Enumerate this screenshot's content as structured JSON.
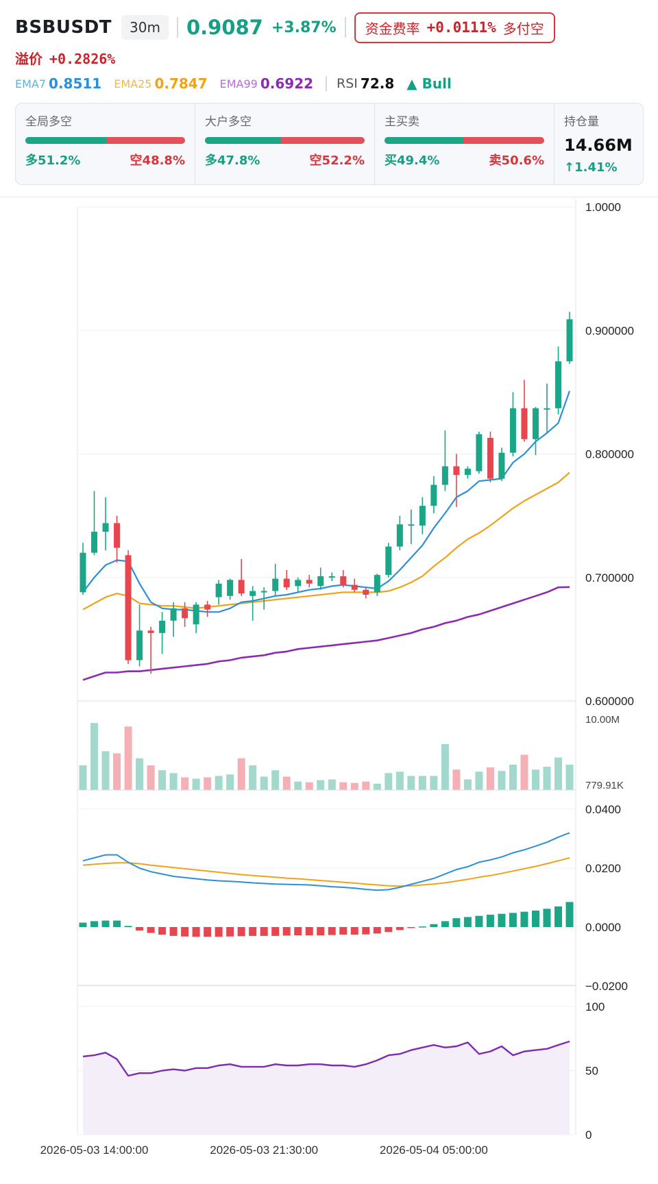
{
  "header": {
    "symbol": "BSBUSDT",
    "timeframe": "30m",
    "price": "0.9087",
    "change": "+3.87%",
    "funding_label": "资金费率",
    "funding_value": "+0.0111%",
    "funding_side": "多付空"
  },
  "premium": {
    "label": "溢价",
    "value": "+0.2826%"
  },
  "indicators": {
    "ema7_label": "EMA7",
    "ema7_value": "0.8511",
    "ema25_label": "EMA25",
    "ema25_value": "0.7847",
    "ema99_label": "EMA99",
    "ema99_value": "0.6922",
    "rsi_label": "RSI",
    "rsi_value": "72.8",
    "trend": "▲ Bull"
  },
  "cards": [
    {
      "title": "全局多空",
      "long_label": "多51.2%",
      "short_label": "空48.8%",
      "long_ratio": 0.512
    },
    {
      "title": "大户多空",
      "long_label": "多47.8%",
      "short_label": "空52.2%",
      "long_ratio": 0.478
    },
    {
      "title": "主买卖",
      "long_label": "买49.4%",
      "short_label": "卖50.6%",
      "long_ratio": 0.494
    }
  ],
  "open_interest": {
    "title": "持仓量",
    "value": "14.66M",
    "change": "↑1.41%"
  },
  "colors": {
    "up": "#1ba687",
    "down": "#e8464f",
    "ema7": "#2b8fd9",
    "ema25": "#f0a21a",
    "ema99": "#8a2bb0",
    "rsi": "#7d2bb0"
  },
  "chart_data": {
    "type": "candlestick",
    "price_axis": {
      "ticks": [
        "1.0000",
        "0.900000",
        "0.800000",
        "0.700000",
        "0.600000"
      ],
      "range": [
        0.6,
        1.0
      ]
    },
    "volume_axis": {
      "ticks": [
        "10.00M",
        "779.91K"
      ],
      "range": [
        0,
        10000000
      ]
    },
    "macd_axis": {
      "ticks": [
        "0.0400",
        "0.0200",
        "0.0000",
        "−0.0200"
      ],
      "range": [
        -0.02,
        0.04
      ]
    },
    "rsi_axis": {
      "ticks": [
        "100",
        "50",
        "0"
      ],
      "range": [
        0,
        100
      ]
    },
    "x_ticks": [
      {
        "label": "2026-05-03 14:00:00",
        "index": 1
      },
      {
        "label": "2026-05-03 21:30:00",
        "index": 16
      },
      {
        "label": "2026-05-04 05:00:00",
        "index": 31
      }
    ],
    "candles": [
      [
        0.688,
        0.728,
        0.686,
        0.72
      ],
      [
        0.72,
        0.77,
        0.718,
        0.737
      ],
      [
        0.737,
        0.765,
        0.722,
        0.744
      ],
      [
        0.744,
        0.75,
        0.712,
        0.724
      ],
      [
        0.718,
        0.722,
        0.63,
        0.633
      ],
      [
        0.633,
        0.678,
        0.628,
        0.657
      ],
      [
        0.657,
        0.66,
        0.622,
        0.655
      ],
      [
        0.655,
        0.672,
        0.638,
        0.665
      ],
      [
        0.665,
        0.68,
        0.652,
        0.675
      ],
      [
        0.675,
        0.68,
        0.66,
        0.667
      ],
      [
        0.662,
        0.68,
        0.655,
        0.678
      ],
      [
        0.678,
        0.681,
        0.668,
        0.674
      ],
      [
        0.684,
        0.698,
        0.678,
        0.695
      ],
      [
        0.685,
        0.699,
        0.682,
        0.698
      ],
      [
        0.698,
        0.715,
        0.685,
        0.687
      ],
      [
        0.685,
        0.693,
        0.665,
        0.689
      ],
      [
        0.689,
        0.692,
        0.674,
        0.689
      ],
      [
        0.689,
        0.711,
        0.685,
        0.699
      ],
      [
        0.699,
        0.706,
        0.69,
        0.692
      ],
      [
        0.693,
        0.7,
        0.688,
        0.698
      ],
      [
        0.698,
        0.702,
        0.692,
        0.695
      ],
      [
        0.693,
        0.708,
        0.69,
        0.701
      ],
      [
        0.701,
        0.704,
        0.697,
        0.701
      ],
      [
        0.701,
        0.706,
        0.692,
        0.694
      ],
      [
        0.694,
        0.699,
        0.688,
        0.69
      ],
      [
        0.69,
        0.692,
        0.683,
        0.686
      ],
      [
        0.688,
        0.703,
        0.685,
        0.702
      ],
      [
        0.702,
        0.728,
        0.7,
        0.725
      ],
      [
        0.725,
        0.75,
        0.722,
        0.743
      ],
      [
        0.743,
        0.755,
        0.727,
        0.743
      ],
      [
        0.742,
        0.765,
        0.735,
        0.758
      ],
      [
        0.758,
        0.782,
        0.752,
        0.775
      ],
      [
        0.775,
        0.819,
        0.77,
        0.79
      ],
      [
        0.79,
        0.8,
        0.757,
        0.783
      ],
      [
        0.783,
        0.79,
        0.78,
        0.788
      ],
      [
        0.786,
        0.818,
        0.784,
        0.816
      ],
      [
        0.813,
        0.818,
        0.777,
        0.78
      ],
      [
        0.78,
        0.805,
        0.778,
        0.801
      ],
      [
        0.801,
        0.85,
        0.798,
        0.837
      ],
      [
        0.837,
        0.86,
        0.81,
        0.812
      ],
      [
        0.812,
        0.838,
        0.799,
        0.837
      ],
      [
        0.836,
        0.857,
        0.817,
        0.837
      ],
      [
        0.837,
        0.887,
        0.832,
        0.875
      ],
      [
        0.875,
        0.915,
        0.873,
        0.909
      ]
    ],
    "ema7": [
      0.688,
      0.7,
      0.71,
      0.714,
      0.713,
      0.695,
      0.68,
      0.675,
      0.674,
      0.674,
      0.673,
      0.672,
      0.672,
      0.675,
      0.68,
      0.681,
      0.683,
      0.685,
      0.686,
      0.688,
      0.69,
      0.691,
      0.693,
      0.694,
      0.693,
      0.692,
      0.691,
      0.697,
      0.706,
      0.716,
      0.726,
      0.74,
      0.752,
      0.765,
      0.77,
      0.778,
      0.779,
      0.78,
      0.793,
      0.8,
      0.81,
      0.817,
      0.825,
      0.851
    ],
    "ema25": [
      0.674,
      0.679,
      0.684,
      0.687,
      0.685,
      0.679,
      0.678,
      0.677,
      0.677,
      0.676,
      0.675,
      0.676,
      0.677,
      0.678,
      0.679,
      0.68,
      0.681,
      0.682,
      0.683,
      0.684,
      0.685,
      0.686,
      0.687,
      0.688,
      0.688,
      0.688,
      0.688,
      0.689,
      0.692,
      0.696,
      0.701,
      0.709,
      0.716,
      0.724,
      0.731,
      0.736,
      0.742,
      0.749,
      0.756,
      0.762,
      0.767,
      0.772,
      0.777,
      0.785
    ],
    "ema99": [
      0.617,
      0.62,
      0.623,
      0.623,
      0.624,
      0.624,
      0.625,
      0.626,
      0.627,
      0.628,
      0.629,
      0.63,
      0.632,
      0.633,
      0.635,
      0.636,
      0.637,
      0.639,
      0.64,
      0.642,
      0.643,
      0.644,
      0.645,
      0.646,
      0.647,
      0.648,
      0.649,
      0.651,
      0.653,
      0.655,
      0.658,
      0.66,
      0.663,
      0.665,
      0.668,
      0.67,
      0.673,
      0.676,
      0.679,
      0.682,
      0.685,
      0.688,
      0.692,
      0.6922
    ],
    "volume": [
      3.5,
      9.5,
      5.5,
      5.2,
      9.0,
      4.5,
      3.5,
      2.8,
      2.4,
      1.8,
      1.6,
      1.8,
      2.0,
      2.2,
      4.5,
      3.5,
      1.9,
      2.8,
      1.9,
      1.2,
      1.1,
      1.4,
      1.5,
      1.1,
      1.0,
      1.2,
      0.9,
      2.4,
      2.6,
      2.0,
      2.0,
      2.0,
      6.5,
      2.9,
      1.5,
      2.6,
      3.2,
      2.7,
      3.6,
      5.0,
      2.9,
      3.3,
      4.6,
      3.6
    ],
    "macd_dif": [
      0.0225,
      0.0235,
      0.0245,
      0.0245,
      0.022,
      0.02,
      0.0188,
      0.018,
      0.0172,
      0.0168,
      0.0164,
      0.016,
      0.0157,
      0.0155,
      0.0153,
      0.015,
      0.0148,
      0.0146,
      0.0145,
      0.0144,
      0.0143,
      0.014,
      0.0137,
      0.0135,
      0.0132,
      0.0128,
      0.0125,
      0.0127,
      0.0135,
      0.0145,
      0.0155,
      0.0165,
      0.018,
      0.0195,
      0.0205,
      0.022,
      0.0228,
      0.0238,
      0.0252,
      0.0262,
      0.0275,
      0.0288,
      0.0305,
      0.032
    ],
    "macd_dea": [
      0.021,
      0.0213,
      0.0216,
      0.0218,
      0.0218,
      0.0215,
      0.021,
      0.0206,
      0.0202,
      0.0198,
      0.0194,
      0.019,
      0.0186,
      0.0182,
      0.0178,
      0.0175,
      0.0172,
      0.0169,
      0.0166,
      0.0164,
      0.0161,
      0.0158,
      0.0155,
      0.0152,
      0.0149,
      0.0146,
      0.0143,
      0.014,
      0.0139,
      0.014,
      0.0143,
      0.0146,
      0.015,
      0.0156,
      0.0162,
      0.0169,
      0.0175,
      0.0182,
      0.019,
      0.0198,
      0.0206,
      0.0215,
      0.0225,
      0.0235
    ],
    "macd_hist": [
      0.0015,
      0.002,
      0.0022,
      0.0022,
      0.0004,
      -0.0012,
      -0.002,
      -0.0026,
      -0.003,
      -0.0032,
      -0.0033,
      -0.0033,
      -0.0033,
      -0.0032,
      -0.0031,
      -0.003,
      -0.003,
      -0.003,
      -0.0029,
      -0.0028,
      -0.0028,
      -0.0028,
      -0.0027,
      -0.0026,
      -0.0026,
      -0.0025,
      -0.0022,
      -0.0017,
      -0.001,
      -0.0003,
      0.0002,
      0.001,
      0.002,
      0.003,
      0.0034,
      0.0038,
      0.0042,
      0.0045,
      0.0048,
      0.0052,
      0.0056,
      0.0062,
      0.007,
      0.0085
    ],
    "rsi": [
      61,
      62,
      64,
      59,
      46,
      48,
      48,
      50,
      51,
      50,
      52,
      52,
      54,
      55,
      53,
      53,
      53,
      55,
      54,
      54,
      55,
      55,
      54,
      54,
      53,
      55,
      58,
      62,
      63,
      66,
      68,
      70,
      68,
      69,
      72,
      63,
      65,
      69,
      62,
      65,
      66,
      67,
      70,
      72.8
    ]
  }
}
